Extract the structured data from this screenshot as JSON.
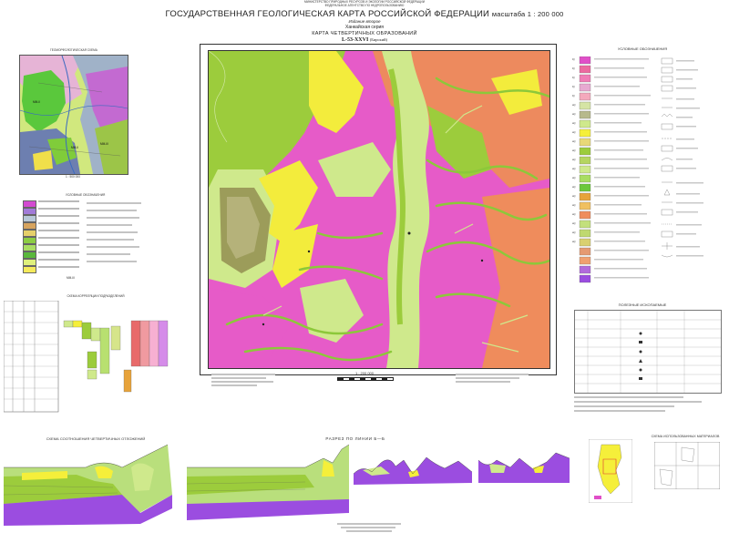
{
  "header": {
    "agency_line1": "МИНИСТЕРСТВО ПРИРОДНЫХ РЕСУРСОВ И ЭКОЛОГИИ РОССИЙСКОЙ ФЕДЕРАЦИИ",
    "agency_line2": "ФЕДЕРАЛЬНОЕ АГЕНТСТВО ПО НЕДРОПОЛЬЗОВАНИЮ",
    "title": "ГОСУДАРСТВЕННАЯ ГЕОЛОГИЧЕСКАЯ КАРТА РОССИЙСКОЙ ФЕДЕРАЦИИ",
    "scale_label": "масштаба 1 : 200 000",
    "edition": "Издание второе",
    "series": "Ханкайская серия",
    "map_type": "КАРТА ЧЕТВЕРТИЧНЫХ ОБРАЗОВАНИЙ",
    "sheet_id": "L-53-XXVI",
    "sheet_name": "(Бирский)"
  },
  "inset_map": {
    "title": "ГЕОМОРФОЛОГИЧЕСКАЯ СХЕМА",
    "scale": "1 : 500 000",
    "legend_title": "УСЛОВНЫЕ ОБОЗНАЧЕНИЯ",
    "code_label": "ММ-III",
    "zone_labels": [
      "ММ-II",
      "ММ-II",
      "ММ-III"
    ]
  },
  "scheme_correlation": {
    "title": "СХЕМА КОРРЕЛЯЦИИ ПОДРАЗДЕЛЕНИЙ"
  },
  "main_map": {
    "scale_label": "1 : 200 000"
  },
  "right_legend": {
    "title": "УСЛОВНЫЕ ОБОЗНАЧЕНИЯ",
    "unit_codes": [
      "lQ",
      "lQ",
      "lQ",
      "lQ",
      "lQ",
      "aQ",
      "aQ",
      "aQ",
      "aQ",
      "aQ",
      "aQ",
      "aQ",
      "aQ",
      "aQ",
      "aQ",
      "aQ",
      "aQ",
      "aQ",
      "aQ",
      "aQ",
      "aQ"
    ]
  },
  "minerals_legend": {
    "title": "ПОЛЕЗНЫЕ ИСКОПАЕМЫЕ"
  },
  "bottom": {
    "correlation_title": "СХЕМА СООТНОШЕНИЯ ЧЕТВЕРТИЧНЫХ ОТЛОЖЕНИЙ",
    "section_title": "РАЗРЕЗ ПО ЛИНИИ",
    "section_line": "Б—Б",
    "index_title": "СХЕМА ИСПОЛЬЗОВАННЫХ МАТЕРИАЛОВ"
  },
  "colors": {
    "magenta": "#e04fc8",
    "orange": "#ec8a5c",
    "yellow": "#f5ef3a",
    "green": "#9ccc3c",
    "light_green": "#cfe98c",
    "olive": "#9c9c5a",
    "violet": "#9b4de0"
  }
}
